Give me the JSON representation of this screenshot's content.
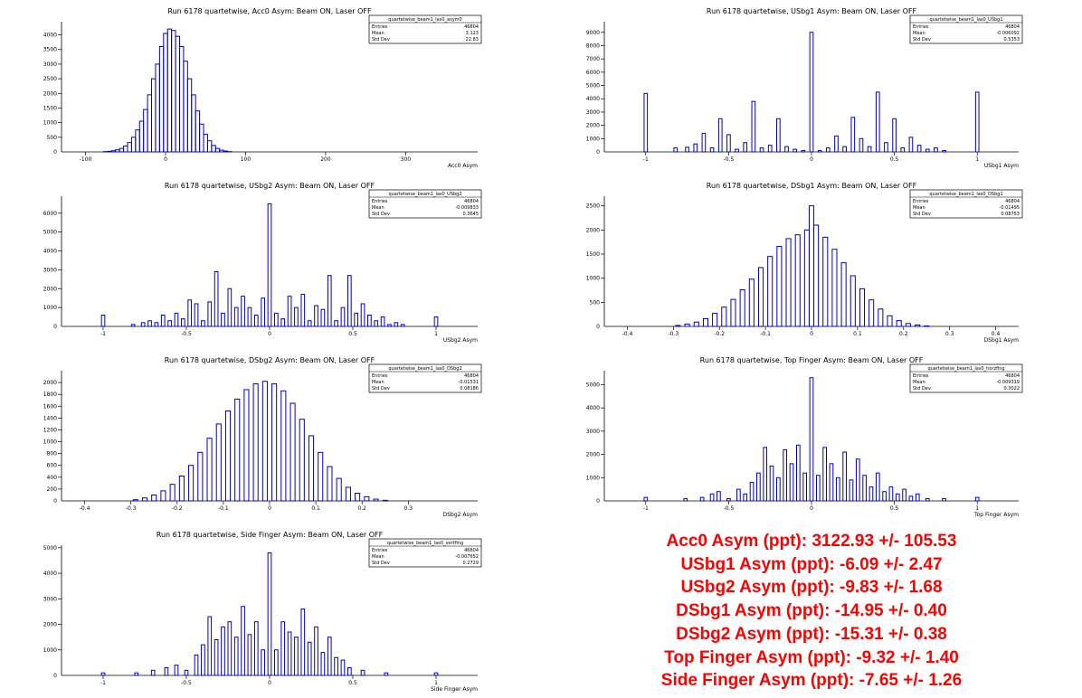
{
  "colors": {
    "histogram": "#0000cc",
    "axis": "#000000",
    "results": "#ff0000"
  },
  "chart_data": [
    {
      "type": "bar",
      "title": "Run 6178 quartetwise, Acc0 Asym: Beam ON, Laser OFF",
      "xlabel": "Acc0 Asym",
      "xlim": [
        -130,
        390
      ],
      "ylim": [
        0,
        4450
      ],
      "xticks": [
        -100,
        0,
        100,
        200,
        300
      ],
      "yticks": [
        500,
        1000,
        1500,
        2000,
        2500,
        3000,
        3500,
        4000
      ],
      "stats": {
        "name": "quartetwise_beam1_las0_asym0",
        "entries": "46804",
        "mean": "3.123",
        "std_dev": "22.83"
      },
      "bin_width": 5,
      "x": [
        -75,
        -70,
        -65,
        -60,
        -55,
        -50,
        -45,
        -40,
        -35,
        -30,
        -25,
        -20,
        -15,
        -10,
        -5,
        0,
        5,
        10,
        15,
        20,
        25,
        30,
        35,
        40,
        45,
        50,
        55,
        60,
        65,
        70,
        75,
        80
      ],
      "values": [
        10,
        20,
        40,
        70,
        120,
        200,
        320,
        500,
        750,
        1050,
        1450,
        1950,
        2500,
        3000,
        3600,
        4050,
        4200,
        4150,
        3950,
        3600,
        3100,
        2500,
        1950,
        1400,
        950,
        600,
        380,
        220,
        120,
        60,
        30,
        10
      ]
    },
    {
      "type": "bar",
      "title": "Run 6178 quartetwise, USbg1 Asym: Beam ON, Laser OFF",
      "xlabel": "USbg1 Asym",
      "xlim": [
        -1.25,
        1.25
      ],
      "ylim": [
        0,
        9800
      ],
      "xticks": [
        -1,
        -0.5,
        0,
        0.5,
        1
      ],
      "yticks": [
        1000,
        2000,
        3000,
        4000,
        5000,
        6000,
        7000,
        8000,
        9000
      ],
      "stats": {
        "name": "quartetwise_beam1_las0_USbg1",
        "entries": "46804",
        "mean": "-0.006092",
        "std_dev": "0.5353"
      },
      "bin_width": 0.02,
      "x": [
        -1.0,
        -0.82,
        -0.75,
        -0.7,
        -0.65,
        -0.6,
        -0.55,
        -0.5,
        -0.45,
        -0.4,
        -0.35,
        -0.3,
        -0.25,
        -0.2,
        -0.15,
        -0.1,
        -0.05,
        0.0,
        0.05,
        0.1,
        0.15,
        0.2,
        0.25,
        0.3,
        0.35,
        0.4,
        0.45,
        0.5,
        0.55,
        0.6,
        0.65,
        0.7,
        0.75,
        0.8,
        1.0
      ],
      "values": [
        4400,
        300,
        350,
        600,
        1400,
        300,
        2500,
        1300,
        200,
        700,
        3800,
        300,
        500,
        2500,
        400,
        200,
        100,
        9000,
        100,
        300,
        1200,
        400,
        2600,
        1000,
        400,
        4500,
        700,
        2500,
        300,
        1100,
        500,
        200,
        300,
        100,
        4500
      ]
    },
    {
      "type": "bar",
      "title": "Run 6178 quartetwise, USbg2 Asym: Beam ON, Laser OFF",
      "xlabel": "USbg2 Asym",
      "xlim": [
        -1.25,
        1.25
      ],
      "ylim": [
        0,
        6900
      ],
      "xticks": [
        -1,
        -0.5,
        0,
        0.5,
        1
      ],
      "yticks": [
        1000,
        2000,
        3000,
        4000,
        5000,
        6000
      ],
      "stats": {
        "name": "quartetwise_beam1_las0_USbg2",
        "entries": "46804",
        "mean": "-0.009833",
        "std_dev": "0.3645"
      },
      "bin_width": 0.02,
      "x": [
        -1.0,
        -0.82,
        -0.76,
        -0.72,
        -0.68,
        -0.64,
        -0.6,
        -0.56,
        -0.52,
        -0.48,
        -0.44,
        -0.4,
        -0.36,
        -0.32,
        -0.28,
        -0.24,
        -0.2,
        -0.16,
        -0.12,
        -0.08,
        -0.04,
        0.0,
        0.04,
        0.08,
        0.12,
        0.16,
        0.2,
        0.24,
        0.28,
        0.32,
        0.36,
        0.4,
        0.44,
        0.48,
        0.52,
        0.56,
        0.6,
        0.64,
        0.68,
        0.72,
        0.76,
        0.8,
        1.0
      ],
      "values": [
        600,
        100,
        200,
        300,
        200,
        600,
        300,
        700,
        400,
        1400,
        1200,
        300,
        1300,
        2900,
        700,
        2000,
        1000,
        1600,
        1000,
        600,
        1500,
        6500,
        700,
        400,
        1600,
        1000,
        1700,
        300,
        1100,
        900,
        2700,
        300,
        1000,
        2700,
        700,
        1200,
        600,
        300,
        500,
        100,
        200,
        100,
        500
      ]
    },
    {
      "type": "bar",
      "title": "Run 6178 quartetwise, DSbg1 Asym: Beam ON, Laser OFF",
      "xlabel": "DSbg1 Asym",
      "xlim": [
        -0.45,
        0.45
      ],
      "ylim": [
        0,
        2700
      ],
      "xticks": [
        -0.4,
        -0.3,
        -0.2,
        -0.1,
        0,
        0.1,
        0.2,
        0.3,
        0.4
      ],
      "yticks": [
        500,
        1000,
        1500,
        2000,
        2500
      ],
      "stats": {
        "name": "quartetwise_beam1_las0_DSbg1",
        "entries": "46804",
        "mean": "-0.01495",
        "std_dev": "0.08753"
      },
      "bin_width": 0.01,
      "x": [
        -0.29,
        -0.27,
        -0.25,
        -0.23,
        -0.21,
        -0.19,
        -0.17,
        -0.15,
        -0.13,
        -0.11,
        -0.09,
        -0.07,
        -0.05,
        -0.03,
        -0.01,
        0.0,
        0.01,
        0.03,
        0.05,
        0.07,
        0.09,
        0.11,
        0.13,
        0.15,
        0.17,
        0.19,
        0.21,
        0.23,
        0.25
      ],
      "values": [
        20,
        50,
        90,
        160,
        270,
        400,
        560,
        760,
        980,
        1220,
        1450,
        1660,
        1820,
        1900,
        2000,
        2500,
        2100,
        1850,
        1600,
        1320,
        1050,
        780,
        550,
        360,
        220,
        120,
        60,
        30,
        10
      ]
    },
    {
      "type": "bar",
      "title": "Run 6178 quartetwise, DSbg2 Asym: Beam ON, Laser OFF",
      "xlabel": "DSbg2 Asym",
      "xlim": [
        -0.45,
        0.45
      ],
      "ylim": [
        0,
        2200
      ],
      "xticks": [
        -0.4,
        -0.3,
        -0.2,
        -0.1,
        0,
        0.1,
        0.2,
        0.3
      ],
      "yticks": [
        200,
        400,
        600,
        800,
        1000,
        1200,
        1400,
        1600,
        1800,
        2000
      ],
      "stats": {
        "name": "quartetwise_beam1_las0_DSbg2",
        "entries": "46804",
        "mean": "-0.01531",
        "std_dev": "0.08186"
      },
      "bin_width": 0.01,
      "x": [
        -0.29,
        -0.27,
        -0.25,
        -0.23,
        -0.21,
        -0.19,
        -0.17,
        -0.15,
        -0.13,
        -0.11,
        -0.09,
        -0.07,
        -0.05,
        -0.03,
        -0.01,
        0.01,
        0.03,
        0.05,
        0.07,
        0.09,
        0.11,
        0.13,
        0.15,
        0.17,
        0.19,
        0.21,
        0.23,
        0.25
      ],
      "values": [
        20,
        50,
        100,
        170,
        280,
        420,
        600,
        820,
        1060,
        1300,
        1520,
        1720,
        1880,
        1980,
        2020,
        1980,
        1860,
        1650,
        1380,
        1100,
        820,
        580,
        380,
        230,
        130,
        70,
        30,
        10
      ]
    },
    {
      "type": "bar",
      "title": "Run 6178 quartetwise, Top Finger Asym: Beam ON, Laser OFF",
      "xlabel": "Top Finger Asym",
      "xlim": [
        -1.25,
        1.25
      ],
      "ylim": [
        0,
        5600
      ],
      "xticks": [
        -1,
        -0.5,
        0,
        0.5,
        1
      ],
      "yticks": [
        1000,
        2000,
        3000,
        4000,
        5000
      ],
      "stats": {
        "name": "quartetwise_beam1_las0_horzfing",
        "entries": "46804",
        "mean": "-0.009319",
        "std_dev": "0.3022"
      },
      "bin_width": 0.02,
      "x": [
        -1.0,
        -0.76,
        -0.66,
        -0.6,
        -0.56,
        -0.5,
        -0.44,
        -0.4,
        -0.36,
        -0.32,
        -0.28,
        -0.24,
        -0.2,
        -0.16,
        -0.12,
        -0.08,
        -0.04,
        0.0,
        0.04,
        0.08,
        0.12,
        0.16,
        0.2,
        0.24,
        0.28,
        0.32,
        0.36,
        0.4,
        0.44,
        0.48,
        0.52,
        0.56,
        0.6,
        0.64,
        0.7,
        0.8,
        1.0
      ],
      "values": [
        150,
        100,
        150,
        300,
        400,
        100,
        500,
        300,
        800,
        1200,
        2300,
        1500,
        1000,
        2200,
        1600,
        2400,
        1200,
        5300,
        1100,
        2300,
        1600,
        1000,
        2100,
        900,
        1800,
        1100,
        600,
        1200,
        400,
        600,
        300,
        500,
        200,
        300,
        100,
        100,
        150
      ]
    },
    {
      "type": "bar",
      "title": "Run 6178 quartetwise, Side Finger Asym: Beam ON, Laser OFF",
      "xlabel": "Side Finger Asym",
      "xlim": [
        -1.25,
        1.25
      ],
      "ylim": [
        0,
        5100
      ],
      "xticks": [
        -1,
        -0.5,
        0,
        0.5,
        1
      ],
      "yticks": [
        1000,
        2000,
        3000,
        4000,
        5000
      ],
      "stats": {
        "name": "quartetwise_beam1_las0_vertfing",
        "entries": "46804",
        "mean": "-0.007652",
        "std_dev": "0.2729"
      },
      "bin_width": 0.02,
      "x": [
        -1.0,
        -0.8,
        -0.7,
        -0.62,
        -0.56,
        -0.5,
        -0.44,
        -0.4,
        -0.36,
        -0.32,
        -0.28,
        -0.24,
        -0.2,
        -0.16,
        -0.12,
        -0.08,
        -0.04,
        0.0,
        0.04,
        0.08,
        0.12,
        0.16,
        0.2,
        0.24,
        0.28,
        0.32,
        0.36,
        0.4,
        0.44,
        0.48,
        0.56,
        0.7,
        1.0
      ],
      "values": [
        100,
        100,
        200,
        300,
        400,
        200,
        800,
        1200,
        2300,
        1400,
        1900,
        2100,
        1500,
        2700,
        1600,
        2100,
        1000,
        4800,
        1000,
        2100,
        1700,
        1500,
        2600,
        1300,
        1900,
        900,
        1500,
        700,
        600,
        300,
        200,
        100,
        100
      ]
    }
  ],
  "results": [
    "Acc0 Asym (ppt): 3122.93 +/- 105.53",
    "USbg1 Asym (ppt): -6.09 +/- 2.47",
    "USbg2 Asym (ppt): -9.83 +/- 1.68",
    "DSbg1 Asym (ppt): -14.95 +/- 0.40",
    "DSbg2 Asym (ppt): -15.31 +/- 0.38",
    "Top Finger Asym (ppt): -9.32 +/- 1.40",
    "Side Finger Asym (ppt): -7.65 +/- 1.26"
  ],
  "stat_labels": {
    "entries": "Entries",
    "mean": "Mean",
    "std_dev": "Std Dev"
  }
}
